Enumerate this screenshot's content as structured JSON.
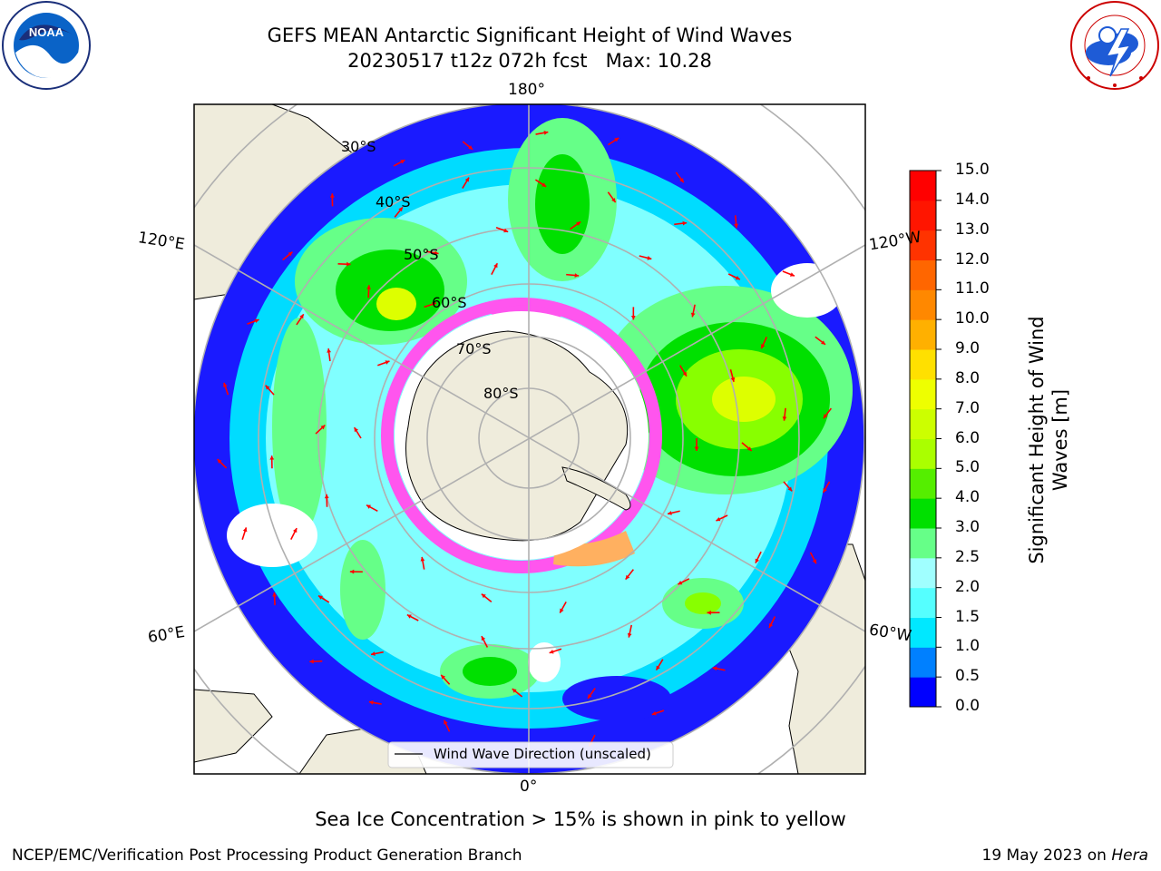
{
  "title": {
    "line1": "GEFS MEAN Antarctic Significant Height of Wind Waves",
    "line2": "20230517 t12z 072h fcst   Max: 10.28"
  },
  "logos": {
    "left": {
      "text": "NOAA",
      "ring_text": "NATIONAL OCEANIC AND ATMOSPHERIC ADMINISTRATION · U.S. DEPARTMENT OF COMMERCE"
    },
    "right": {
      "ring_text": "NATIONAL WEATHER SERVICE"
    }
  },
  "map": {
    "longitude_labels": {
      "top": "180°",
      "bottom": "0°",
      "upper_left": "120°E",
      "upper_right": "120°W",
      "lower_left": "60°E",
      "lower_right": "60°W"
    },
    "latitude_labels": [
      "30°S",
      "40°S",
      "50°S",
      "60°S",
      "70°S",
      "80°S"
    ],
    "legend_label": "Wind Wave Direction (unscaled)",
    "colors": {
      "land": "#efecdc",
      "arrow": "#ff0000",
      "grid": "#b0b0b0",
      "sea_ice": "#ff55ee"
    }
  },
  "colorbar": {
    "label": "Significant Height of Wind Waves [m]",
    "label_line1": "Significant Height of Wind",
    "label_line2": "Waves [m]",
    "ticks": [
      "0.0",
      "0.5",
      "1.0",
      "1.5",
      "2.0",
      "2.5",
      "3.0",
      "4.0",
      "5.0",
      "6.0",
      "7.0",
      "8.0",
      "9.0",
      "10.0",
      "11.0",
      "12.0",
      "13.0",
      "14.0",
      "15.0"
    ],
    "colors": [
      "#0000ff",
      "#0080ff",
      "#00e8ff",
      "#55ffff",
      "#a0ffff",
      "#66ff88",
      "#00e000",
      "#55ee00",
      "#aaff00",
      "#ccff00",
      "#eeff00",
      "#ffe000",
      "#ffb000",
      "#ff8800",
      "#ff6600",
      "#ff3300",
      "#ff1500",
      "#ff0000"
    ]
  },
  "footer": {
    "note": "Sea Ice Concentration > 15% is shown in pink to yellow",
    "credit": "NCEP/EMC/Verification Post Processing Product Generation Branch",
    "date_prefix": "19 May 2023 on ",
    "machine": "Hera"
  }
}
